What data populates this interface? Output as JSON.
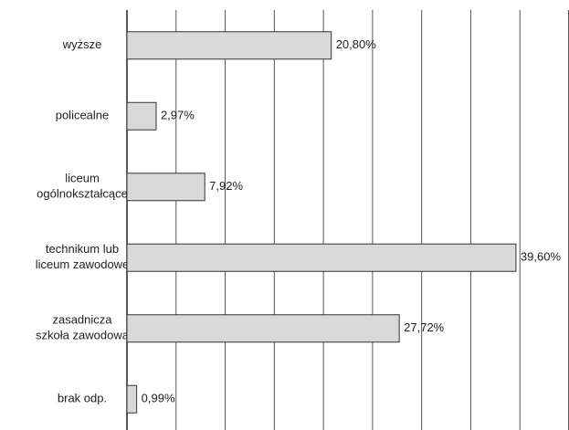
{
  "chart_data": {
    "type": "barh",
    "categories": [
      [
        "wyższe"
      ],
      [
        "policealne"
      ],
      [
        "liceum",
        "ogólnokształcące"
      ],
      [
        "technikum  lub",
        "liceum zawodowe"
      ],
      [
        "zasadnicza",
        "szkoła zawodowa"
      ],
      [
        "brak odp."
      ]
    ],
    "values": [
      20.8,
      2.97,
      7.92,
      39.6,
      27.72,
      0.99
    ],
    "value_labels": [
      "20,80%",
      "2,97%",
      "7,92%",
      "39,60%",
      "27,72%",
      "0,99%"
    ],
    "color": "#d9d9d9",
    "xlim": [
      0,
      45
    ],
    "xticks": [
      0,
      5,
      10,
      15,
      20,
      25,
      30,
      35,
      40,
      45
    ],
    "grid": true
  }
}
